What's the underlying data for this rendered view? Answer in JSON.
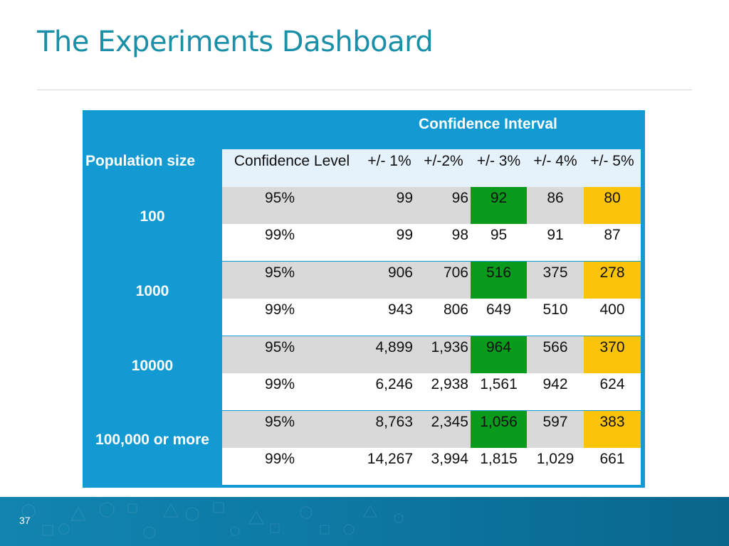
{
  "slide": {
    "title": "The Experiments Dashboard",
    "page_number": "37"
  },
  "table": {
    "group_header": "Confidence Interval",
    "population_header": "Population size",
    "columns": [
      "Confidence Level",
      "+/- 1%",
      "+/-2%",
      "+/- 3%",
      "+/- 4%",
      "+/- 5%"
    ],
    "groups": [
      {
        "population": "100",
        "rows": [
          {
            "level": "95%",
            "v1": "99",
            "v2": "96",
            "v3": "92",
            "v4": "86",
            "v5": "80"
          },
          {
            "level": "99%",
            "v1": "99",
            "v2": "98",
            "v3": "95",
            "v4": "91",
            "v5": "87"
          }
        ]
      },
      {
        "population": "1000",
        "rows": [
          {
            "level": "95%",
            "v1": "906",
            "v2": "706",
            "v3": "516",
            "v4": "375",
            "v5": "278"
          },
          {
            "level": "99%",
            "v1": "943",
            "v2": "806",
            "v3": "649",
            "v4": "510",
            "v5": "400"
          }
        ]
      },
      {
        "population": "10000",
        "rows": [
          {
            "level": "95%",
            "v1": "4,899",
            "v2": "1,936",
            "v3": "964",
            "v4": "566",
            "v5": "370"
          },
          {
            "level": "99%",
            "v1": "6,246",
            "v2": "2,938",
            "v3": "1,561",
            "v4": "942",
            "v5": "624"
          }
        ]
      },
      {
        "population": "100,000 or more",
        "rows": [
          {
            "level": "95%",
            "v1": "8,763",
            "v2": "2,345",
            "v3": "1,056",
            "v4": "597",
            "v5": "383"
          },
          {
            "level": "99%",
            "v1": "14,267",
            "v2": "3,994",
            "v3": "1,815",
            "v4": "1,029",
            "v5": "661"
          }
        ]
      }
    ]
  },
  "colors": {
    "title": "#1a8fa8",
    "table_frame": "#139ad2",
    "header_row": "#e5f1fb",
    "row_grey": "#d9d9d9",
    "highlight_green": "#0a9a1c",
    "highlight_yellow": "#fcc30b",
    "footer": "#0e7aa6"
  }
}
